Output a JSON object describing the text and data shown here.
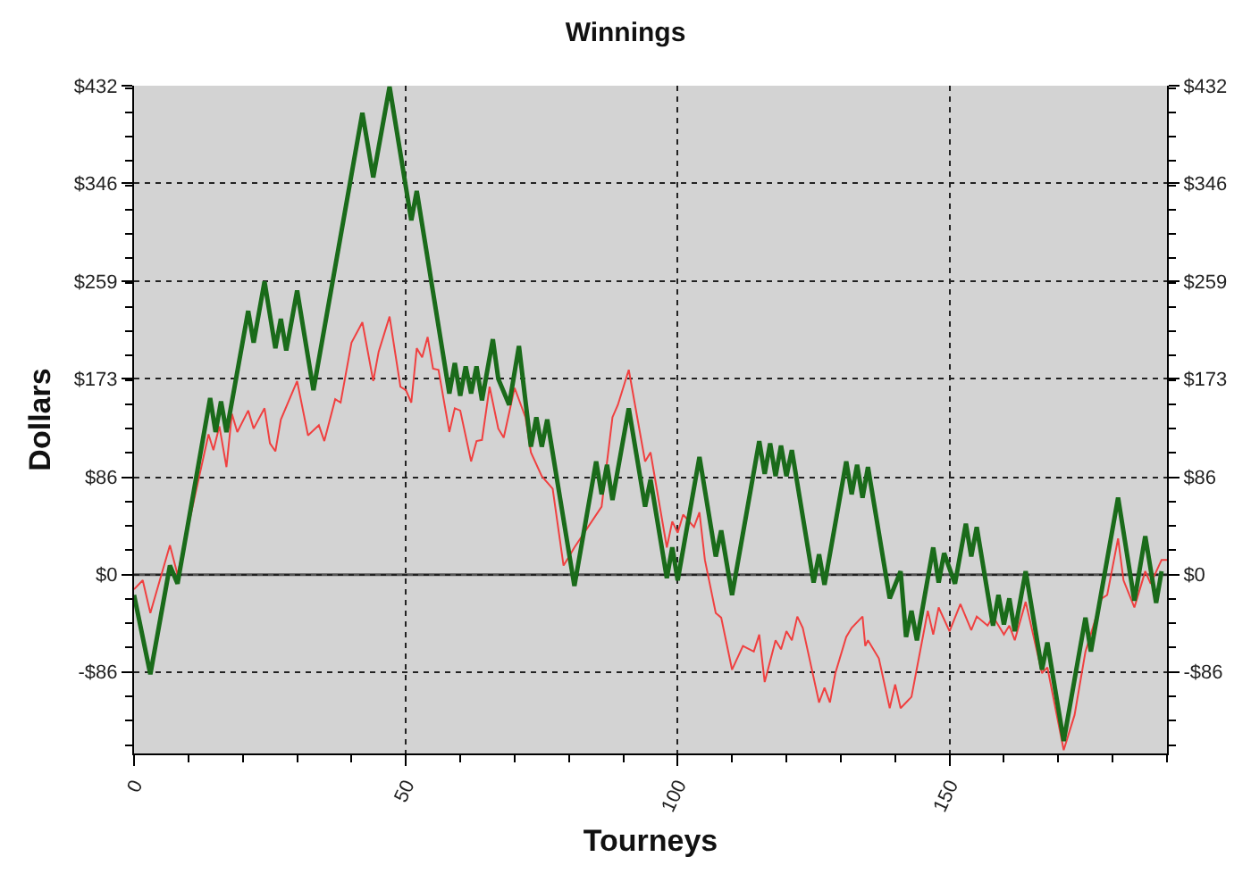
{
  "chart_data": {
    "type": "line",
    "title": "Winnings",
    "xlabel": "Tourneys",
    "ylabel": "Dollars",
    "xlim": [
      0,
      190
    ],
    "xticks": [
      0,
      50,
      100,
      150
    ],
    "ylim": [
      -158,
      432
    ],
    "yticks": [
      {
        "value": -86,
        "label": "-$86"
      },
      {
        "value": 0,
        "label": "$0"
      },
      {
        "value": 86,
        "label": "$86"
      },
      {
        "value": 173,
        "label": "$173"
      },
      {
        "value": 259,
        "label": "$259"
      },
      {
        "value": 346,
        "label": "$346"
      },
      {
        "value": 432,
        "label": "$432"
      }
    ],
    "y2lim": [
      -158,
      432
    ],
    "y2ticks": [
      {
        "value": -86,
        "label": "-$86"
      },
      {
        "value": 0,
        "label": "$0"
      },
      {
        "value": 86,
        "label": "$86"
      },
      {
        "value": 173,
        "label": "$173"
      },
      {
        "value": 259,
        "label": "$259"
      },
      {
        "value": 346,
        "label": "$346"
      },
      {
        "value": 432,
        "label": "$432"
      }
    ],
    "grid": true,
    "line_style": "solid",
    "marker": "none",
    "ref_lines": [
      {
        "axis": "y",
        "value": 0,
        "color": "#555555"
      }
    ],
    "series": [
      {
        "color": "#f04040",
        "x": [
          0,
          1.6,
          3,
          6.6,
          8,
          13.7,
          14.6,
          15.7,
          17,
          18,
          19,
          21,
          22,
          24,
          25,
          26,
          27,
          30,
          32,
          34,
          35,
          37,
          38,
          40,
          42,
          44,
          45,
          47,
          49,
          50,
          51,
          52,
          53,
          54,
          55,
          56,
          58,
          59,
          60,
          62,
          63,
          64,
          65.4,
          67,
          68,
          70,
          72,
          73,
          75,
          77,
          79,
          80,
          81,
          86,
          88,
          89,
          91,
          94,
          95,
          98,
          99,
          100,
          101,
          103,
          104,
          105,
          107,
          108,
          110,
          112,
          114,
          115,
          116,
          118,
          119,
          120,
          121,
          122,
          123,
          126,
          127,
          128,
          129,
          131,
          132,
          134,
          134.5,
          135,
          137,
          139,
          140,
          141,
          143,
          146,
          147,
          148,
          150,
          152,
          154,
          155,
          157,
          158,
          160,
          161,
          162,
          164,
          167,
          168,
          171,
          173,
          175,
          178,
          179,
          181,
          182,
          184,
          186,
          187,
          189,
          190
        ],
        "values": [
          -13,
          -5,
          -34,
          26,
          0,
          124,
          110,
          131,
          95,
          142,
          126,
          145,
          129,
          147,
          116,
          109,
          137,
          171,
          123,
          132,
          118,
          155,
          152,
          205,
          223,
          171,
          197,
          228,
          166,
          163,
          152,
          200,
          192,
          210,
          182,
          181,
          126,
          147,
          145,
          100,
          118,
          119,
          166,
          129,
          121,
          165,
          139,
          108,
          87,
          76,
          8,
          16,
          24,
          60,
          139,
          150,
          181,
          100,
          108,
          24,
          47,
          37,
          53,
          42,
          55,
          13,
          -34,
          -38,
          -84,
          -63,
          -68,
          -53,
          -95,
          -58,
          -66,
          -50,
          -58,
          -37,
          -47,
          -113,
          -100,
          -113,
          -87,
          -55,
          -47,
          -37,
          -63,
          -58,
          -74,
          -118,
          -97,
          -118,
          -108,
          -32,
          -53,
          -29,
          -50,
          -26,
          -49,
          -37,
          -45,
          -37,
          -53,
          -45,
          -58,
          -24,
          -87,
          -82,
          -155,
          -124,
          -68,
          -21,
          -18,
          32,
          -5,
          -29,
          3,
          -8,
          13,
          13
        ]
      },
      {
        "color": "#1a6b1a",
        "x": [
          0,
          3,
          6.6,
          8,
          14,
          15,
          16,
          17,
          21,
          22,
          24,
          26,
          27,
          28,
          30,
          33,
          42,
          44,
          47,
          51,
          52,
          58,
          59,
          60,
          61,
          62,
          63,
          64,
          66,
          67,
          69,
          70.8,
          73,
          74,
          75,
          76,
          81,
          85,
          86,
          87,
          88,
          91,
          94,
          95,
          98,
          99,
          100,
          104,
          107,
          108,
          110,
          115,
          116,
          117,
          118,
          119,
          120,
          121,
          125,
          126,
          127,
          131,
          132,
          133,
          134,
          135,
          139,
          141,
          142,
          143,
          144,
          147,
          148,
          149,
          151,
          153,
          154,
          155,
          158,
          159,
          160,
          161,
          162,
          164,
          167,
          168,
          171,
          175,
          176,
          181,
          184,
          186,
          188,
          189
        ],
        "values": [
          -18,
          -88,
          8,
          -8,
          156,
          126,
          153,
          126,
          233,
          205,
          259,
          200,
          226,
          198,
          251,
          163,
          408,
          351,
          431,
          313,
          339,
          160,
          187,
          158,
          184,
          160,
          184,
          154,
          208,
          173,
          150,
          202,
          113,
          139,
          113,
          137,
          -10,
          100,
          71,
          97,
          66,
          147,
          60,
          84,
          -3,
          24,
          -5,
          104,
          16,
          39,
          -18,
          118,
          89,
          116,
          87,
          114,
          87,
          110,
          -7,
          18,
          -9,
          100,
          71,
          97,
          68,
          95,
          -21,
          3,
          -55,
          -32,
          -58,
          24,
          -7,
          19,
          -8,
          45,
          16,
          42,
          -45,
          -18,
          -44,
          -21,
          -50,
          3,
          -84,
          -60,
          -147,
          -38,
          -68,
          68,
          -23,
          34,
          -25,
          3
        ]
      }
    ]
  }
}
